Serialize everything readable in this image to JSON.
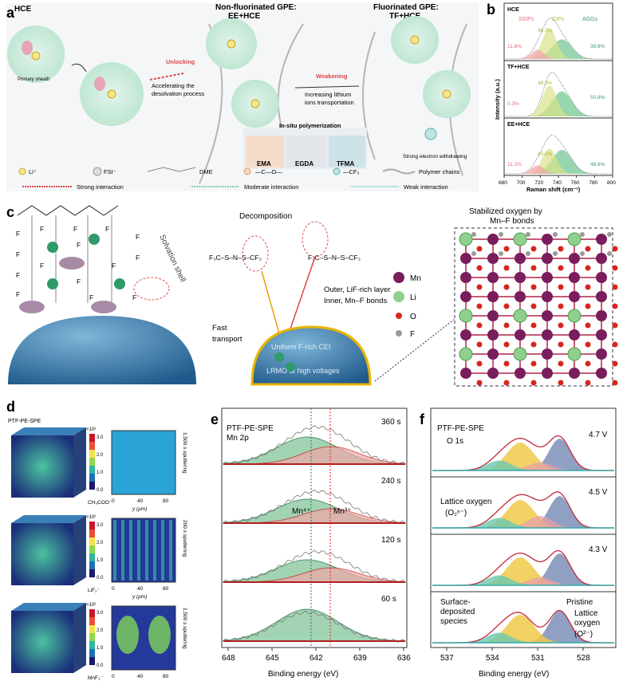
{
  "panel_a": {
    "letter": "a",
    "title_hce": "HCE",
    "title_nonfluor": "Non-fluorinated GPE:",
    "title_nonfluor2": "EE+HCE",
    "title_fluor": "Fluorinated GPE:",
    "title_fluor2": "TF+HCE",
    "primary_sheath": "Primary sheath",
    "unlocking": "Unlocking",
    "accelerating1": "Accelerating the",
    "accelerating2": "desolvation process",
    "weakening": "Weakening",
    "increasing1": "Increasing lithium",
    "increasing2": "ions transportation",
    "insitu": "In-situ polymerization",
    "monomers": [
      "EMA",
      "EGDA",
      "TFMA"
    ],
    "strong_withdrawing": "Strong electron withdrawing",
    "legend": {
      "li": "Li⁺",
      "fsi": "FSI⁻",
      "dme": "DME",
      "ester": "—C—O—",
      "cf3": "—CF₃",
      "polymer": "Polymer chains",
      "strong": "Strong interaction",
      "moderate": "Moderate interaction",
      "weak": "Weak interaction"
    }
  },
  "panel_b": {
    "letter": "b",
    "ylabel": "Intensity (a.u.)",
    "xlabel": "Raman shift (cm⁻¹)",
    "xticks": [
      "680",
      "700",
      "720",
      "740",
      "760",
      "780",
      "800"
    ],
    "legend_labels": [
      "SSIPs",
      "CIPs",
      "AGGs"
    ],
    "sub": [
      {
        "label": "HCE",
        "ssip": "11.8%",
        "cip": "48.3%",
        "agg": "39.8%"
      },
      {
        "label": "TF+HCE",
        "ssip": "0.3%",
        "cip": "48.9%",
        "agg": "50.8%"
      },
      {
        "label": "EE+HCE",
        "ssip": "11.2%",
        "cip": "40.0%",
        "agg": "48.8%"
      }
    ]
  },
  "panel_c": {
    "letter": "c",
    "decomposition": "Decomposition",
    "solvation_shell": "Solvation shell",
    "outer_inner1": "Outer, LiF-rich layer",
    "outer_inner2": "Inner, Mn–F bonds",
    "fast1": "Fast",
    "fast2": "transport",
    "uniform": "Uniform F-rich CEI",
    "lrmo": "LRMO at high voltages",
    "stabilized1": "Stabilized oxygen by",
    "stabilized2": "Mn–F bonds",
    "atoms": [
      "Mn",
      "Li",
      "O",
      "F"
    ]
  },
  "panel_d": {
    "letter": "d",
    "title": "PTF-PE-SPE",
    "scale": "×10²",
    "cbar_ticks": [
      "3.0",
      "2.0",
      "1.0",
      "0.0"
    ],
    "y_label": "y (μm)",
    "y_ticks": [
      "0",
      "40",
      "80"
    ],
    "rows": [
      {
        "species": "CH₃COO⁻",
        "sputter": "1,500 s sputtering"
      },
      {
        "species": "LiF₂⁻",
        "sputter": "200 s sputtering"
      },
      {
        "species": "MnF₃⁻",
        "sputter": "1,500 s sputtering"
      }
    ]
  },
  "panel_e": {
    "letter": "e",
    "title": "PTF-PE-SPE",
    "subtitle": "Mn 2p",
    "times": [
      "360 s",
      "240 s",
      "120 s",
      "60 s"
    ],
    "mn4": "Mn⁴⁺",
    "mn3": "Mn³⁺",
    "xlabel": "Binding energy (eV)",
    "xticks": [
      "648",
      "645",
      "642",
      "639",
      "636"
    ]
  },
  "panel_f": {
    "letter": "f",
    "title": "PTF-PE-SPE",
    "subtitle": "O 1s",
    "voltages": [
      "4.7 V",
      "4.5 V",
      "4.3 V"
    ],
    "lattice1": "Lattice oxygen",
    "lattice2": "(O₂ⁿ⁻)",
    "surface1": "Surface-",
    "surface2": "deposited",
    "surface3": "species",
    "pristine": "Pristine",
    "lattice_b1": "Lattice",
    "lattice_b2": "oxygen",
    "lattice_b3": "(O²⁻)",
    "xlabel": "Binding energy (eV)",
    "xticks": [
      "537",
      "534",
      "531",
      "528"
    ]
  }
}
